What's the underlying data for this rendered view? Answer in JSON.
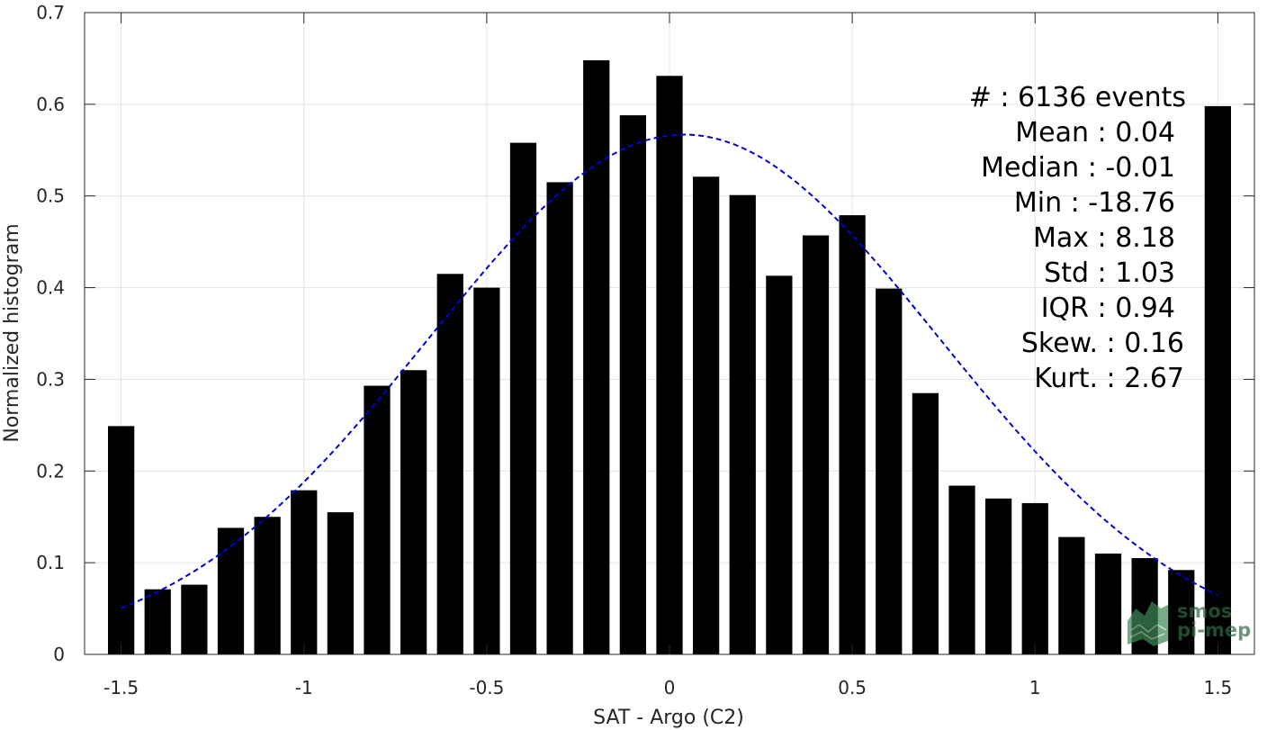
{
  "chart_data": {
    "type": "bar",
    "xlabel": "SAT - Argo (C2)",
    "ylabel": "Normalized histogram",
    "xlim": [
      -1.6,
      1.6
    ],
    "ylim": [
      0,
      0.7
    ],
    "xticks": [
      -1.5,
      -1,
      -0.5,
      0,
      0.5,
      1,
      1.5
    ],
    "xtick_labels": [
      "-1.5",
      "-1",
      "-0.5",
      "0",
      "0.5",
      "1",
      "1.5"
    ],
    "yticks": [
      0,
      0.1,
      0.2,
      0.3,
      0.4,
      0.5,
      0.6,
      0.7
    ],
    "ytick_labels": [
      "0",
      "0.1",
      "0.2",
      "0.3",
      "0.4",
      "0.5",
      "0.6",
      "0.7"
    ],
    "grid": true,
    "bar_color": "#000000",
    "bins": [
      -1.5,
      -1.4,
      -1.3,
      -1.2,
      -1.1,
      -1.0,
      -0.9,
      -0.8,
      -0.7,
      -0.6,
      -0.5,
      -0.4,
      -0.3,
      -0.2,
      -0.1,
      0.0,
      0.1,
      0.2,
      0.3,
      0.4,
      0.5,
      0.6,
      0.7,
      0.8,
      0.9,
      1.0,
      1.1,
      1.2,
      1.3,
      1.4,
      1.5
    ],
    "values": [
      0.249,
      0.071,
      0.076,
      0.138,
      0.15,
      0.179,
      0.155,
      0.293,
      0.31,
      0.415,
      0.4,
      0.558,
      0.515,
      0.648,
      0.588,
      0.631,
      0.521,
      0.501,
      0.413,
      0.457,
      0.479,
      0.399,
      0.285,
      0.184,
      0.17,
      0.165,
      0.128,
      0.11,
      0.105,
      0.092,
      0.598
    ],
    "fit_curve": {
      "style": "dashed",
      "color": "#0000dd",
      "mean": 0.04,
      "std": 0.7,
      "peak": 0.567,
      "x_range": [
        -1.5,
        1.5
      ]
    },
    "stats": [
      {
        "label": "#  : 6136 events"
      },
      {
        "label": "Mean : 0.04"
      },
      {
        "label": "Median : -0.01"
      },
      {
        "label": "Min : -18.76"
      },
      {
        "label": "Max : 8.18"
      },
      {
        "label": "Std : 1.03"
      },
      {
        "label": "IQR : 0.94"
      },
      {
        "label": "Skew. : 0.16"
      },
      {
        "label": "Kurt. : 2.67"
      }
    ]
  },
  "logo": {
    "line1": "smos",
    "line2": "pi-mep"
  }
}
